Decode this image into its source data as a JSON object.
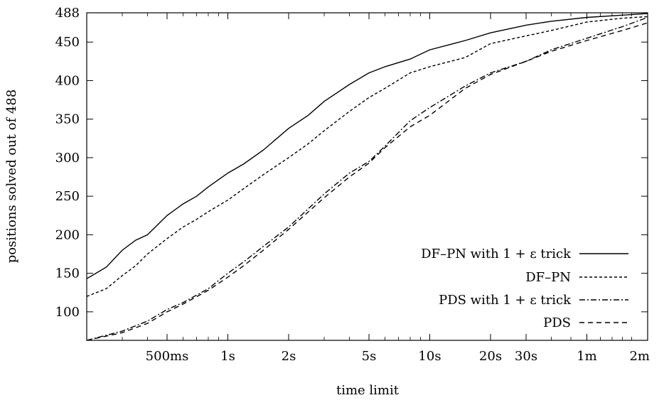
{
  "chart_data": {
    "type": "line",
    "xlabel": "time limit",
    "ylabel": "positions solved out of 488",
    "x_scale": "log",
    "x_unit": "seconds",
    "xlim": [
      0.2,
      120
    ],
    "ylim": [
      63,
      488
    ],
    "x_ticks": [
      {
        "value": 0.5,
        "label": "500ms"
      },
      {
        "value": 1,
        "label": "1s"
      },
      {
        "value": 2,
        "label": "2s"
      },
      {
        "value": 5,
        "label": "5s"
      },
      {
        "value": 10,
        "label": "10s"
      },
      {
        "value": 20,
        "label": "20s"
      },
      {
        "value": 30,
        "label": "30s"
      },
      {
        "value": 60,
        "label": "1m"
      },
      {
        "value": 120,
        "label": "2m"
      }
    ],
    "y_ticks": [
      {
        "value": 100,
        "label": "100"
      },
      {
        "value": 150,
        "label": "150"
      },
      {
        "value": 200,
        "label": "200"
      },
      {
        "value": 250,
        "label": "250"
      },
      {
        "value": 300,
        "label": "300"
      },
      {
        "value": 350,
        "label": "350"
      },
      {
        "value": 400,
        "label": "400"
      },
      {
        "value": 450,
        "label": "450"
      },
      {
        "value": 488,
        "label": "488"
      }
    ],
    "grid": false,
    "legend_position": "bottom-right",
    "series": [
      {
        "name": "DF–PN with 1 + ε trick",
        "dash": "solid",
        "points": [
          [
            0.2,
            143
          ],
          [
            0.25,
            158
          ],
          [
            0.3,
            180
          ],
          [
            0.35,
            193
          ],
          [
            0.4,
            200
          ],
          [
            0.5,
            225
          ],
          [
            0.6,
            240
          ],
          [
            0.7,
            250
          ],
          [
            0.8,
            262
          ],
          [
            1,
            280
          ],
          [
            1.2,
            292
          ],
          [
            1.5,
            310
          ],
          [
            2,
            338
          ],
          [
            2.5,
            355
          ],
          [
            3,
            373
          ],
          [
            4,
            395
          ],
          [
            5,
            410
          ],
          [
            6,
            418
          ],
          [
            8,
            428
          ],
          [
            10,
            440
          ],
          [
            15,
            452
          ],
          [
            20,
            462
          ],
          [
            30,
            472
          ],
          [
            40,
            477
          ],
          [
            60,
            482
          ],
          [
            90,
            485
          ],
          [
            120,
            487
          ]
        ]
      },
      {
        "name": "DF–PN",
        "dash": "4,3",
        "points": [
          [
            0.2,
            120
          ],
          [
            0.25,
            130
          ],
          [
            0.3,
            147
          ],
          [
            0.35,
            160
          ],
          [
            0.4,
            175
          ],
          [
            0.5,
            195
          ],
          [
            0.6,
            210
          ],
          [
            0.7,
            220
          ],
          [
            0.8,
            230
          ],
          [
            1,
            245
          ],
          [
            1.2,
            260
          ],
          [
            1.5,
            278
          ],
          [
            2,
            300
          ],
          [
            2.5,
            318
          ],
          [
            3,
            335
          ],
          [
            4,
            360
          ],
          [
            5,
            378
          ],
          [
            6,
            390
          ],
          [
            8,
            410
          ],
          [
            10,
            418
          ],
          [
            15,
            430
          ],
          [
            20,
            448
          ],
          [
            30,
            458
          ],
          [
            40,
            465
          ],
          [
            60,
            476
          ],
          [
            90,
            481
          ],
          [
            120,
            483
          ]
        ]
      },
      {
        "name": "PDS with 1 + ε trick",
        "dash": "8,3,2,3",
        "points": [
          [
            0.2,
            63
          ],
          [
            0.3,
            75
          ],
          [
            0.4,
            88
          ],
          [
            0.5,
            103
          ],
          [
            0.6,
            112
          ],
          [
            0.8,
            130
          ],
          [
            1,
            150
          ],
          [
            1.2,
            165
          ],
          [
            1.5,
            185
          ],
          [
            2,
            210
          ],
          [
            3,
            253
          ],
          [
            4,
            280
          ],
          [
            5,
            295
          ],
          [
            6,
            315
          ],
          [
            8,
            348
          ],
          [
            10,
            365
          ],
          [
            15,
            393
          ],
          [
            20,
            410
          ],
          [
            30,
            425
          ],
          [
            40,
            440
          ],
          [
            60,
            455
          ],
          [
            90,
            470
          ],
          [
            120,
            482
          ]
        ]
      },
      {
        "name": "PDS",
        "dash": "7,5",
        "points": [
          [
            0.2,
            63
          ],
          [
            0.3,
            73
          ],
          [
            0.4,
            85
          ],
          [
            0.5,
            100
          ],
          [
            0.6,
            110
          ],
          [
            0.8,
            128
          ],
          [
            1,
            145
          ],
          [
            1.2,
            160
          ],
          [
            1.5,
            180
          ],
          [
            2,
            207
          ],
          [
            3,
            248
          ],
          [
            4,
            275
          ],
          [
            5,
            293
          ],
          [
            6,
            313
          ],
          [
            8,
            340
          ],
          [
            10,
            355
          ],
          [
            15,
            390
          ],
          [
            20,
            408
          ],
          [
            30,
            425
          ],
          [
            40,
            438
          ],
          [
            60,
            452
          ],
          [
            90,
            465
          ],
          [
            120,
            475
          ]
        ]
      }
    ]
  }
}
